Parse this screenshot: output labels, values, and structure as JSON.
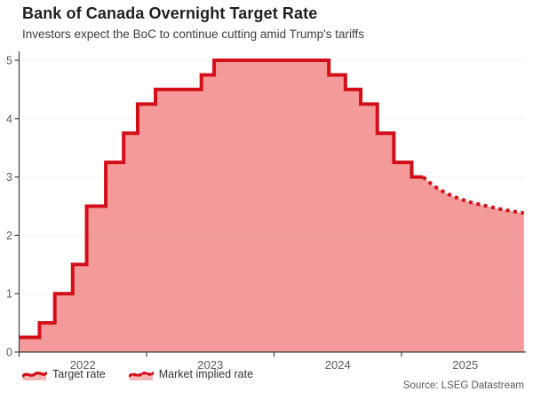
{
  "header": {
    "title": "Bank of Canada Overnight Target Rate",
    "subtitle": "Investors expect the BoC to continue cutting amid Trump's tariffs"
  },
  "legend": {
    "items": [
      {
        "label": "Target rate",
        "style": "solid"
      },
      {
        "label": "Market implied rate",
        "style": "dotted"
      }
    ]
  },
  "source": "Source: LSEG Datastream",
  "colors": {
    "line_red": "#d20f19",
    "fill_pink": "#f49a9a",
    "axis": "#404040",
    "grid": "#9a9a9a",
    "tick_label": "#595959"
  },
  "chart_data": {
    "type": "area",
    "title": "Bank of Canada Overnight Target Rate",
    "xlabel": "",
    "ylabel": "",
    "x_axis": {
      "range": [
        2022.0,
        2025.96
      ],
      "tick_positions": [
        2022,
        2023,
        2024,
        2025
      ],
      "tick_labels": [
        "2022",
        "2023",
        "2024",
        "2025"
      ],
      "label_at_mid_year": true
    },
    "y_axis": {
      "range": [
        0,
        5.3
      ],
      "tick_positions": [
        0,
        1,
        2,
        3,
        4,
        5
      ],
      "tick_labels": [
        "0",
        "1",
        "2",
        "3",
        "4",
        "5"
      ]
    },
    "grid": true,
    "legend_position": "bottom-left",
    "series": [
      {
        "name": "Target rate",
        "style": "solid-step",
        "points": [
          {
            "x": 2022.0,
            "y": 0.25
          },
          {
            "x": 2022.16,
            "y": 0.5
          },
          {
            "x": 2022.28,
            "y": 1.0
          },
          {
            "x": 2022.42,
            "y": 1.5
          },
          {
            "x": 2022.53,
            "y": 2.5
          },
          {
            "x": 2022.68,
            "y": 3.25
          },
          {
            "x": 2022.82,
            "y": 3.75
          },
          {
            "x": 2022.93,
            "y": 4.25
          },
          {
            "x": 2023.07,
            "y": 4.5
          },
          {
            "x": 2023.43,
            "y": 4.75
          },
          {
            "x": 2023.53,
            "y": 5.0
          },
          {
            "x": 2024.43,
            "y": 4.75
          },
          {
            "x": 2024.56,
            "y": 4.5
          },
          {
            "x": 2024.68,
            "y": 4.25
          },
          {
            "x": 2024.81,
            "y": 3.75
          },
          {
            "x": 2024.94,
            "y": 3.25
          },
          {
            "x": 2025.08,
            "y": 3.0
          },
          {
            "x": 2025.17,
            "y": 3.0
          }
        ]
      },
      {
        "name": "Market implied rate",
        "style": "dotted",
        "points": [
          {
            "x": 2025.17,
            "y": 3.0
          },
          {
            "x": 2025.25,
            "y": 2.85
          },
          {
            "x": 2025.35,
            "y": 2.72
          },
          {
            "x": 2025.45,
            "y": 2.63
          },
          {
            "x": 2025.55,
            "y": 2.56
          },
          {
            "x": 2025.65,
            "y": 2.51
          },
          {
            "x": 2025.75,
            "y": 2.46
          },
          {
            "x": 2025.85,
            "y": 2.42
          },
          {
            "x": 2025.96,
            "y": 2.38
          }
        ]
      }
    ]
  }
}
